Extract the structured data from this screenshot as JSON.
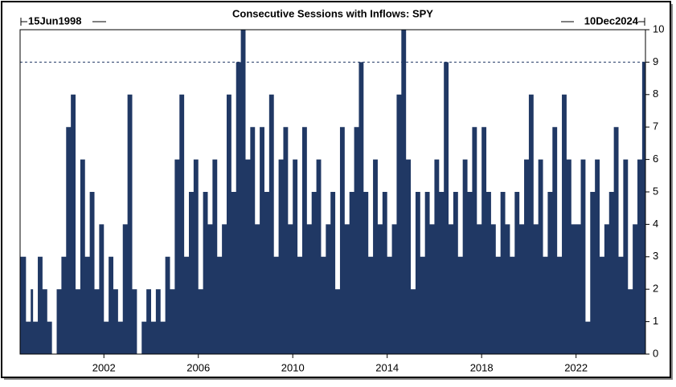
{
  "chart_data": {
    "type": "step-area",
    "title": "Consecutive Sessions with Inflows: SPY",
    "start_label": "15Jun1998",
    "end_label": "10Dec2024",
    "xlim": [
      1998.45,
      2024.94
    ],
    "xticks": [
      2002,
      2006,
      2010,
      2014,
      2018,
      2022
    ],
    "ylim": [
      0,
      10
    ],
    "yticks": [
      0,
      1,
      2,
      3,
      4,
      5,
      6,
      7,
      8,
      9,
      10
    ],
    "reference_line": 9,
    "color": "#203864",
    "x": [
      1998.45,
      1998.7,
      1998.9,
      1999.0,
      1999.2,
      1999.4,
      1999.6,
      1999.8,
      2000.0,
      2000.2,
      2000.4,
      2000.6,
      2000.8,
      2001.0,
      2001.2,
      2001.4,
      2001.6,
      2001.8,
      2002.0,
      2002.2,
      2002.4,
      2002.6,
      2002.8,
      2003.0,
      2003.2,
      2003.4,
      2003.6,
      2003.8,
      2004.0,
      2004.2,
      2004.4,
      2004.6,
      2004.8,
      2005.0,
      2005.2,
      2005.4,
      2005.6,
      2005.8,
      2006.0,
      2006.2,
      2006.4,
      2006.6,
      2006.8,
      2007.0,
      2007.2,
      2007.4,
      2007.6,
      2007.8,
      2008.0,
      2008.2,
      2008.4,
      2008.6,
      2008.8,
      2009.0,
      2009.2,
      2009.4,
      2009.6,
      2009.8,
      2010.0,
      2010.2,
      2010.4,
      2010.6,
      2010.8,
      2011.0,
      2011.2,
      2011.4,
      2011.6,
      2011.8,
      2012.0,
      2012.2,
      2012.4,
      2012.6,
      2012.8,
      2013.0,
      2013.2,
      2013.4,
      2013.6,
      2013.8,
      2014.0,
      2014.2,
      2014.4,
      2014.6,
      2014.8,
      2015.0,
      2015.2,
      2015.4,
      2015.6,
      2015.8,
      2016.0,
      2016.2,
      2016.4,
      2016.6,
      2016.8,
      2017.0,
      2017.2,
      2017.4,
      2017.6,
      2017.8,
      2018.0,
      2018.2,
      2018.4,
      2018.6,
      2018.8,
      2019.0,
      2019.2,
      2019.4,
      2019.6,
      2019.8,
      2020.0,
      2020.2,
      2020.4,
      2020.6,
      2020.8,
      2021.0,
      2021.2,
      2021.4,
      2021.6,
      2021.8,
      2022.0,
      2022.2,
      2022.4,
      2022.6,
      2022.8,
      2023.0,
      2023.2,
      2023.4,
      2023.6,
      2023.8,
      2024.0,
      2024.2,
      2024.4,
      2024.6,
      2024.8
    ],
    "values": [
      3,
      1,
      2,
      1,
      3,
      2,
      1,
      0,
      2,
      3,
      7,
      8,
      2,
      6,
      3,
      5,
      2,
      4,
      1,
      3,
      2,
      1,
      4,
      8,
      2,
      0,
      1,
      2,
      1,
      2,
      1,
      3,
      2,
      6,
      8,
      3,
      5,
      6,
      2,
      5,
      4,
      6,
      3,
      4,
      8,
      5,
      9,
      10,
      6,
      7,
      4,
      7,
      5,
      8,
      3,
      6,
      7,
      4,
      6,
      3,
      7,
      4,
      5,
      6,
      3,
      4,
      5,
      2,
      7,
      4,
      5,
      7,
      9,
      5,
      3,
      6,
      4,
      5,
      3,
      4,
      8,
      10,
      6,
      2,
      5,
      3,
      5,
      4,
      6,
      5,
      9,
      4,
      5,
      3,
      6,
      5,
      7,
      4,
      7,
      5,
      4,
      3,
      5,
      4,
      3,
      5,
      4,
      6,
      8,
      4,
      6,
      3,
      5,
      7,
      3,
      8,
      6,
      4,
      4,
      6,
      1,
      5,
      6,
      3,
      4,
      5,
      7,
      3,
      6,
      2,
      4,
      6,
      9
    ]
  }
}
